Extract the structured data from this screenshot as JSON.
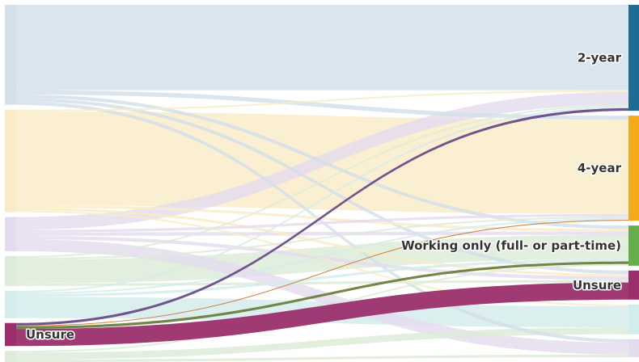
{
  "chart_data": {
    "type": "sankey",
    "title": "",
    "left_nodes": [
      {
        "id": "L1",
        "label": "",
        "color": "#d3dfe9"
      },
      {
        "id": "L2",
        "label": "",
        "color": "#faebc7"
      },
      {
        "id": "L3",
        "label": "",
        "color": "#e3dcee"
      },
      {
        "id": "L4",
        "label": "",
        "color": "#dcecd8"
      },
      {
        "id": "L5",
        "label": "",
        "color": "#d3ecec"
      },
      {
        "id": "L6",
        "label": "Unsure",
        "color": "#9b2f6c"
      },
      {
        "id": "L7",
        "label": "",
        "color": "#dcecd8"
      }
    ],
    "right_nodes": [
      {
        "id": "R1",
        "label": "2-year",
        "color": "#1e6b94"
      },
      {
        "id": "R2",
        "label": "4-year",
        "color": "#f3ab1c"
      },
      {
        "id": "R3",
        "label": "Working only (full- or part-time)",
        "color": "#66ad4c"
      },
      {
        "id": "R4",
        "label": "Unsure",
        "color": "#9b2f6c"
      },
      {
        "id": "R5",
        "label": "",
        "color": "#d3ecec"
      },
      {
        "id": "R6",
        "label": "",
        "color": "#e3dcee"
      }
    ],
    "flows": [
      {
        "from": "L1",
        "to": "R1",
        "value": 100,
        "color": "#d3dfe9"
      },
      {
        "from": "L1",
        "to": "R2",
        "value": 5,
        "color": "#d3dfe9"
      },
      {
        "from": "L1",
        "to": "R3",
        "value": 4,
        "color": "#d3dfe9"
      },
      {
        "from": "L1",
        "to": "R4",
        "value": 4,
        "color": "#d3dfe9"
      },
      {
        "from": "L1",
        "to": "R6",
        "value": 4,
        "color": "#d3dfe9"
      },
      {
        "from": "L2",
        "to": "R1",
        "value": 2,
        "color": "#faebc7"
      },
      {
        "from": "L2",
        "to": "R2",
        "value": 110,
        "color": "#faebc7"
      },
      {
        "from": "L2",
        "to": "R3",
        "value": 3,
        "color": "#faebc7"
      },
      {
        "from": "L2",
        "to": "R4",
        "value": 3,
        "color": "#faebc7"
      },
      {
        "from": "L2",
        "to": "R5",
        "value": 2,
        "color": "#faebc7"
      },
      {
        "from": "L3",
        "to": "R1",
        "value": 15,
        "color": "#e3dcee"
      },
      {
        "from": "L3",
        "to": "R2",
        "value": 3,
        "color": "#e3dcee"
      },
      {
        "from": "L3",
        "to": "R3",
        "value": 4,
        "color": "#e3dcee"
      },
      {
        "from": "L3",
        "to": "R4",
        "value": 4,
        "color": "#e3dcee"
      },
      {
        "from": "L3",
        "to": "R6",
        "value": 14,
        "color": "#e3dcee"
      },
      {
        "from": "L4",
        "to": "R1",
        "value": 2,
        "color": "#dcecd8"
      },
      {
        "from": "L4",
        "to": "R2",
        "value": 2,
        "color": "#dcecd8"
      },
      {
        "from": "L4",
        "to": "R3",
        "value": 28,
        "color": "#dcecd8"
      },
      {
        "from": "L4",
        "to": "R4",
        "value": 3,
        "color": "#dcecd8"
      },
      {
        "from": "L5",
        "to": "R1",
        "value": 2,
        "color": "#d3ecec"
      },
      {
        "from": "L5",
        "to": "R2",
        "value": 2,
        "color": "#d3ecec"
      },
      {
        "from": "L5",
        "to": "R3",
        "value": 3,
        "color": "#d3ecec"
      },
      {
        "from": "L5",
        "to": "R5",
        "value": 25,
        "color": "#d3ecec"
      },
      {
        "from": "L6",
        "to": "R1",
        "value": 3,
        "color": "#6a4b87"
      },
      {
        "from": "L6",
        "to": "R2",
        "value": 1,
        "color": "#c8813e"
      },
      {
        "from": "L6",
        "to": "R3",
        "value": 3,
        "color": "#6e7d3d"
      },
      {
        "from": "L6",
        "to": "R4",
        "value": 20,
        "color": "#9b2f6c"
      },
      {
        "from": "L7",
        "to": "R3",
        "value": 2,
        "color": "#dcecd8"
      },
      {
        "from": "L7",
        "to": "R5",
        "value": 8,
        "color": "#dcecd8"
      },
      {
        "from": "L7",
        "to": "R6",
        "value": 3,
        "color": "#dcecd8"
      }
    ],
    "grid": false,
    "legend": "none"
  }
}
